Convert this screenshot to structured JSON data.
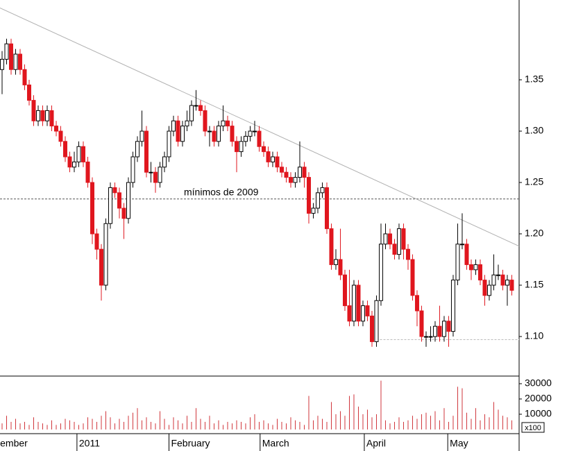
{
  "chart_data": {
    "type": "candlestick",
    "up_color": "#ffffff",
    "down_color": "#e0161e",
    "outline_color": "#000000",
    "volume_color": "#d0343a",
    "xlim": [
      -0.46,
      114.62
    ],
    "xticks": [
      {
        "value": -0.9,
        "label": "ember"
      },
      {
        "value": 16.6,
        "label": "2011"
      },
      {
        "value": 37,
        "label": "February"
      },
      {
        "value": 57.2,
        "label": "March"
      },
      {
        "value": 80.3,
        "label": "April"
      },
      {
        "value": 98.8,
        "label": "May"
      }
    ],
    "ylim": [
      1.0615,
      1.4277
    ],
    "yticks": [
      {
        "value": 1.1,
        "label": "1.10"
      },
      1.15,
      {
        "value": 1.2,
        "label": "1.20"
      },
      1.25,
      {
        "value": 1.3,
        "label": "1.30"
      },
      1.35
    ],
    "open": [
      1.36,
      1.37,
      1.385,
      1.36,
      1.375,
      1.36,
      1.345,
      1.33,
      1.31,
      1.32,
      1.31,
      1.32,
      1.305,
      1.3,
      1.29,
      1.275,
      1.265,
      1.27,
      1.285,
      1.27,
      1.25,
      1.2,
      1.185,
      1.15,
      1.21,
      1.245,
      1.24,
      1.225,
      1.215,
      1.25,
      1.275,
      1.29,
      1.3,
      1.26,
      1.26,
      1.25,
      1.265,
      1.275,
      1.3,
      1.31,
      1.29,
      1.305,
      1.31,
      1.325,
      1.325,
      1.32,
      1.3,
      1.3,
      1.29,
      1.305,
      1.31,
      1.305,
      1.29,
      1.28,
      1.29,
      1.295,
      1.3,
      1.3,
      1.285,
      1.28,
      1.27,
      1.275,
      1.265,
      1.26,
      1.255,
      1.25,
      1.255,
      1.265,
      1.255,
      1.22,
      1.225,
      1.24,
      1.245,
      1.205,
      1.17,
      1.175,
      1.16,
      1.13,
      1.115,
      1.15,
      1.115,
      1.13,
      1.12,
      1.095,
      1.135,
      1.19,
      1.2,
      1.19,
      1.18,
      1.205,
      1.185,
      1.175,
      1.14,
      1.125,
      1.1,
      1.1,
      1.1,
      1.11,
      1.1,
      1.115,
      1.105,
      1.155,
      1.19,
      1.19,
      1.17,
      1.165,
      1.17,
      1.155,
      1.14,
      1.15,
      1.16,
      1.16,
      1.15,
      1.155
    ],
    "high": [
      1.378,
      1.39,
      1.39,
      1.38,
      1.38,
      1.365,
      1.35,
      1.335,
      1.325,
      1.325,
      1.325,
      1.325,
      1.31,
      1.305,
      1.295,
      1.28,
      1.28,
      1.29,
      1.29,
      1.275,
      1.255,
      1.205,
      1.19,
      1.215,
      1.25,
      1.25,
      1.245,
      1.23,
      1.255,
      1.28,
      1.295,
      1.32,
      1.305,
      1.27,
      1.265,
      1.27,
      1.28,
      1.305,
      1.315,
      1.315,
      1.31,
      1.32,
      1.33,
      1.34,
      1.33,
      1.325,
      1.305,
      1.305,
      1.31,
      1.325,
      1.315,
      1.31,
      1.295,
      1.295,
      1.3,
      1.305,
      1.31,
      1.305,
      1.29,
      1.285,
      1.28,
      1.28,
      1.27,
      1.265,
      1.26,
      1.26,
      1.29,
      1.27,
      1.26,
      1.23,
      1.245,
      1.25,
      1.25,
      1.21,
      1.185,
      1.205,
      1.165,
      1.165,
      1.155,
      1.155,
      1.135,
      1.135,
      1.125,
      1.14,
      1.21,
      1.21,
      1.205,
      1.195,
      1.21,
      1.21,
      1.19,
      1.18,
      1.145,
      1.13,
      1.105,
      1.11,
      1.115,
      1.13,
      1.12,
      1.12,
      1.16,
      1.21,
      1.22,
      1.195,
      1.175,
      1.175,
      1.175,
      1.16,
      1.155,
      1.18,
      1.17,
      1.165,
      1.16,
      1.16
    ],
    "low": [
      1.336,
      1.365,
      1.355,
      1.355,
      1.355,
      1.34,
      1.325,
      1.305,
      1.305,
      1.305,
      1.305,
      1.3,
      1.295,
      1.285,
      1.27,
      1.26,
      1.26,
      1.265,
      1.265,
      1.245,
      1.19,
      1.175,
      1.135,
      1.145,
      1.205,
      1.235,
      1.215,
      1.195,
      1.21,
      1.245,
      1.27,
      1.285,
      1.255,
      1.25,
      1.24,
      1.245,
      1.26,
      1.27,
      1.295,
      1.285,
      1.285,
      1.3,
      1.305,
      1.32,
      1.315,
      1.295,
      1.285,
      1.285,
      1.285,
      1.3,
      1.3,
      1.285,
      1.26,
      1.275,
      1.285,
      1.29,
      1.295,
      1.28,
      1.275,
      1.265,
      1.265,
      1.26,
      1.255,
      1.25,
      1.245,
      1.245,
      1.25,
      1.245,
      1.21,
      1.215,
      1.22,
      1.235,
      1.2,
      1.165,
      1.165,
      1.155,
      1.125,
      1.11,
      1.11,
      1.11,
      1.11,
      1.115,
      1.09,
      1.09,
      1.13,
      1.185,
      1.185,
      1.175,
      1.175,
      1.175,
      1.165,
      1.135,
      1.11,
      1.095,
      1.09,
      1.095,
      1.095,
      1.095,
      1.095,
      1.09,
      1.1,
      1.15,
      1.185,
      1.165,
      1.155,
      1.16,
      1.15,
      1.13,
      1.135,
      1.145,
      1.155,
      1.145,
      1.13,
      1.14
    ],
    "close": [
      1.37,
      1.385,
      1.36,
      1.375,
      1.36,
      1.345,
      1.33,
      1.31,
      1.32,
      1.31,
      1.32,
      1.305,
      1.3,
      1.29,
      1.275,
      1.265,
      1.27,
      1.285,
      1.27,
      1.25,
      1.2,
      1.185,
      1.15,
      1.21,
      1.245,
      1.24,
      1.225,
      1.215,
      1.25,
      1.275,
      1.29,
      1.3,
      1.26,
      1.26,
      1.25,
      1.265,
      1.275,
      1.3,
      1.31,
      1.29,
      1.305,
      1.31,
      1.325,
      1.325,
      1.32,
      1.3,
      1.3,
      1.29,
      1.305,
      1.31,
      1.305,
      1.29,
      1.28,
      1.29,
      1.295,
      1.3,
      1.3,
      1.285,
      1.28,
      1.27,
      1.275,
      1.265,
      1.26,
      1.255,
      1.25,
      1.255,
      1.265,
      1.255,
      1.22,
      1.225,
      1.24,
      1.245,
      1.205,
      1.17,
      1.175,
      1.16,
      1.13,
      1.115,
      1.15,
      1.115,
      1.13,
      1.12,
      1.095,
      1.135,
      1.19,
      1.2,
      1.19,
      1.18,
      1.205,
      1.185,
      1.175,
      1.14,
      1.125,
      1.1,
      1.1,
      1.1,
      1.11,
      1.1,
      1.115,
      1.105,
      1.155,
      1.19,
      1.19,
      1.17,
      1.165,
      1.17,
      1.155,
      1.14,
      1.15,
      1.16,
      1.16,
      1.15,
      1.155,
      1.145
    ],
    "volume": [
      4000,
      9000,
      5000,
      7000,
      4000,
      5000,
      3000,
      8000,
      5000,
      4000,
      3000,
      6000,
      3000,
      4000,
      7000,
      6000,
      5000,
      3000,
      4000,
      8000,
      7000,
      5000,
      9000,
      12000,
      8000,
      4000,
      7000,
      5000,
      9000,
      11000,
      14000,
      6000,
      8000,
      5000,
      4000,
      12000,
      7000,
      3000,
      8000,
      6000,
      4000,
      9000,
      5000,
      14000,
      7000,
      5000,
      9000,
      4000,
      6000,
      3000,
      5000,
      4000,
      6000,
      5000,
      4000,
      8000,
      10000,
      5000,
      6000,
      4000,
      3000,
      7000,
      5000,
      4000,
      8000,
      6000,
      5000,
      3000,
      22000,
      6000,
      9000,
      7000,
      5000,
      18000,
      10000,
      12000,
      9000,
      22000,
      23000,
      15000,
      10000,
      13000,
      8000,
      10000,
      32000,
      6000,
      4000,
      5000,
      8000,
      5000,
      6000,
      9000,
      7000,
      10000,
      11000,
      9000,
      12000,
      6000,
      14000,
      5000,
      9000,
      28000,
      27000,
      11000,
      7000,
      14000,
      6000,
      10000,
      8000,
      18000,
      13000,
      9000,
      8000,
      6000
    ],
    "volume_ylim": [
      0,
      35000
    ],
    "volume_yticks": [
      10000,
      20000,
      30000
    ],
    "volume_unit_label": "x100",
    "annotation": {
      "text": "mínimos de 2009",
      "value": 1.234,
      "color": "#555555"
    },
    "trendline": {
      "x": [
        -0.46,
        114.62
      ],
      "y": [
        1.42,
        1.188
      ],
      "color": "#b0b0b0"
    },
    "support_line": {
      "x": [
        83,
        114.62
      ],
      "value": 1.097,
      "color": "#bbbbbb"
    }
  }
}
